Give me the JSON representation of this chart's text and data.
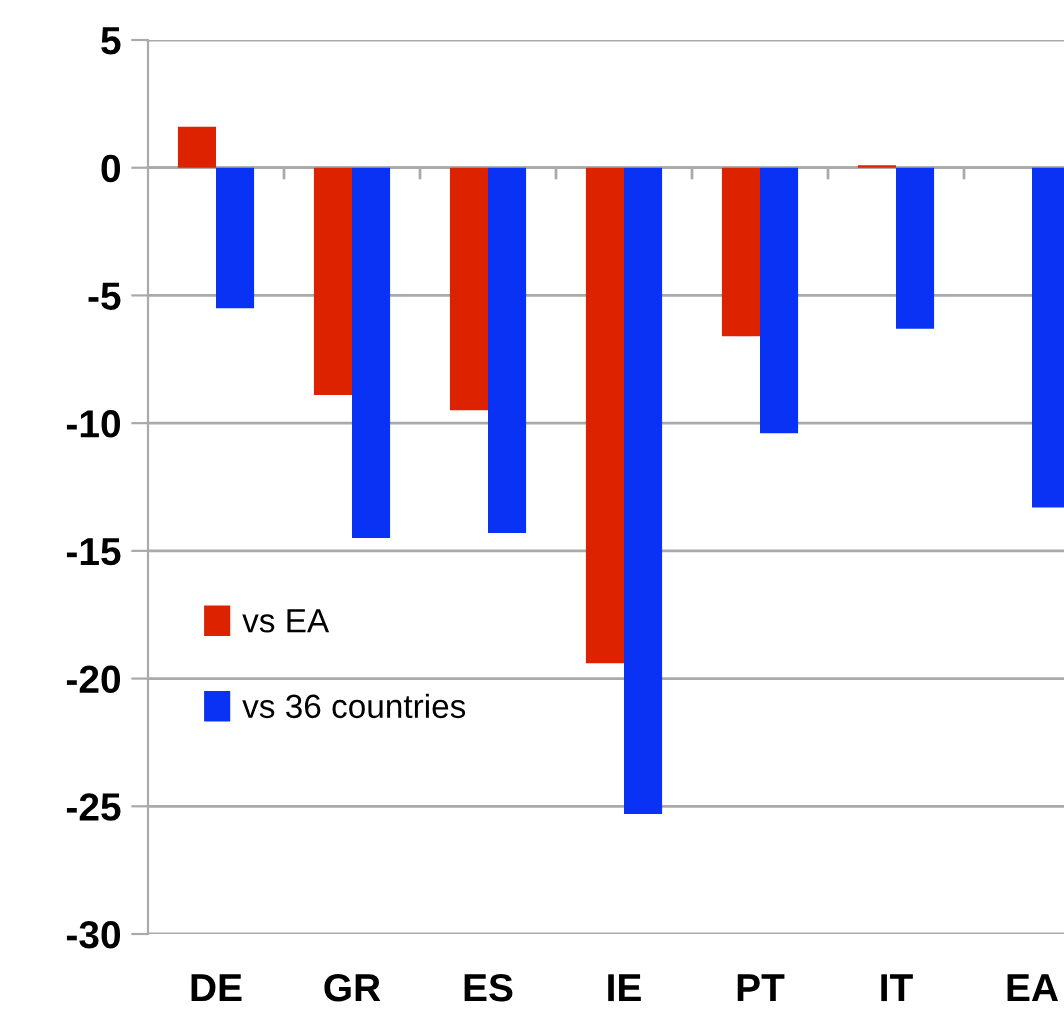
{
  "chart_data": {
    "type": "bar",
    "categories": [
      "DE",
      "GR",
      "ES",
      "IE",
      "PT",
      "IT",
      "EA"
    ],
    "series": [
      {
        "name": "vs EA",
        "color": "#dd2200",
        "values": [
          1.6,
          -8.9,
          -9.5,
          -19.4,
          -6.6,
          0.1,
          null
        ]
      },
      {
        "name": "vs 36 countries",
        "color": "#0a32f5",
        "values": [
          -5.5,
          -14.5,
          -14.3,
          -25.3,
          -10.4,
          -6.3,
          -13.3
        ]
      }
    ],
    "ylim": [
      -30,
      5
    ],
    "yticks": [
      -30,
      -25,
      -20,
      -15,
      -10,
      -5,
      0,
      5
    ],
    "grid": "y",
    "legend": "left"
  }
}
